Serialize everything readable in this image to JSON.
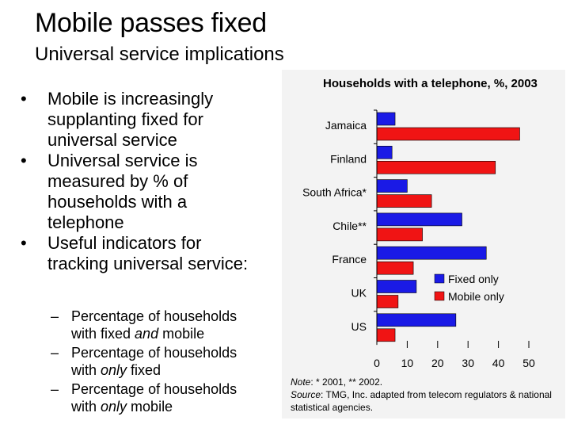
{
  "slide": {
    "title": "Mobile passes fixed",
    "subtitle": "Universal service implications"
  },
  "bullets": [
    {
      "marker": "•",
      "text": "Mobile is increasingly supplanting fixed for universal service"
    },
    {
      "marker": "•",
      "text": "Universal service is measured by % of households with a telephone"
    },
    {
      "marker": "•",
      "text": "Useful indicators for tracking universal service:"
    }
  ],
  "subbullets": [
    {
      "marker": "–",
      "prefix": "Percentage of households with fixed ",
      "em": "and",
      "suffix": " mobile"
    },
    {
      "marker": "–",
      "prefix": "Percentage of households with ",
      "em": "only",
      "suffix": " fixed"
    },
    {
      "marker": "–",
      "prefix": "Percentage of households with ",
      "em": "only",
      "suffix": " mobile"
    }
  ],
  "note": {
    "note_label": "Note",
    "note_text": ": * 2001, ** 2002.",
    "source_label": "Source",
    "source_text": ": TMG, Inc. adapted from telecom regulators & national statistical agencies."
  },
  "colors": {
    "fixed": "#1a1ae6",
    "mobile": "#f01414",
    "panel": "#f3f3f3"
  },
  "chart_data": {
    "type": "bar",
    "orientation": "horizontal",
    "title": "Households with a telephone, %, 2003",
    "categories": [
      "Jamaica",
      "Finland",
      "South Africa*",
      "Chile**",
      "France",
      "UK",
      "US"
    ],
    "series": [
      {
        "name": "Fixed only",
        "values": [
          6,
          5,
          10,
          28,
          36,
          13,
          26
        ]
      },
      {
        "name": "Mobile only",
        "values": [
          47,
          39,
          18,
          15,
          12,
          7,
          6
        ]
      }
    ],
    "xlim": [
      0,
      50
    ],
    "xticks": [
      0,
      10,
      20,
      30,
      40,
      50
    ],
    "legend_position": "right"
  }
}
